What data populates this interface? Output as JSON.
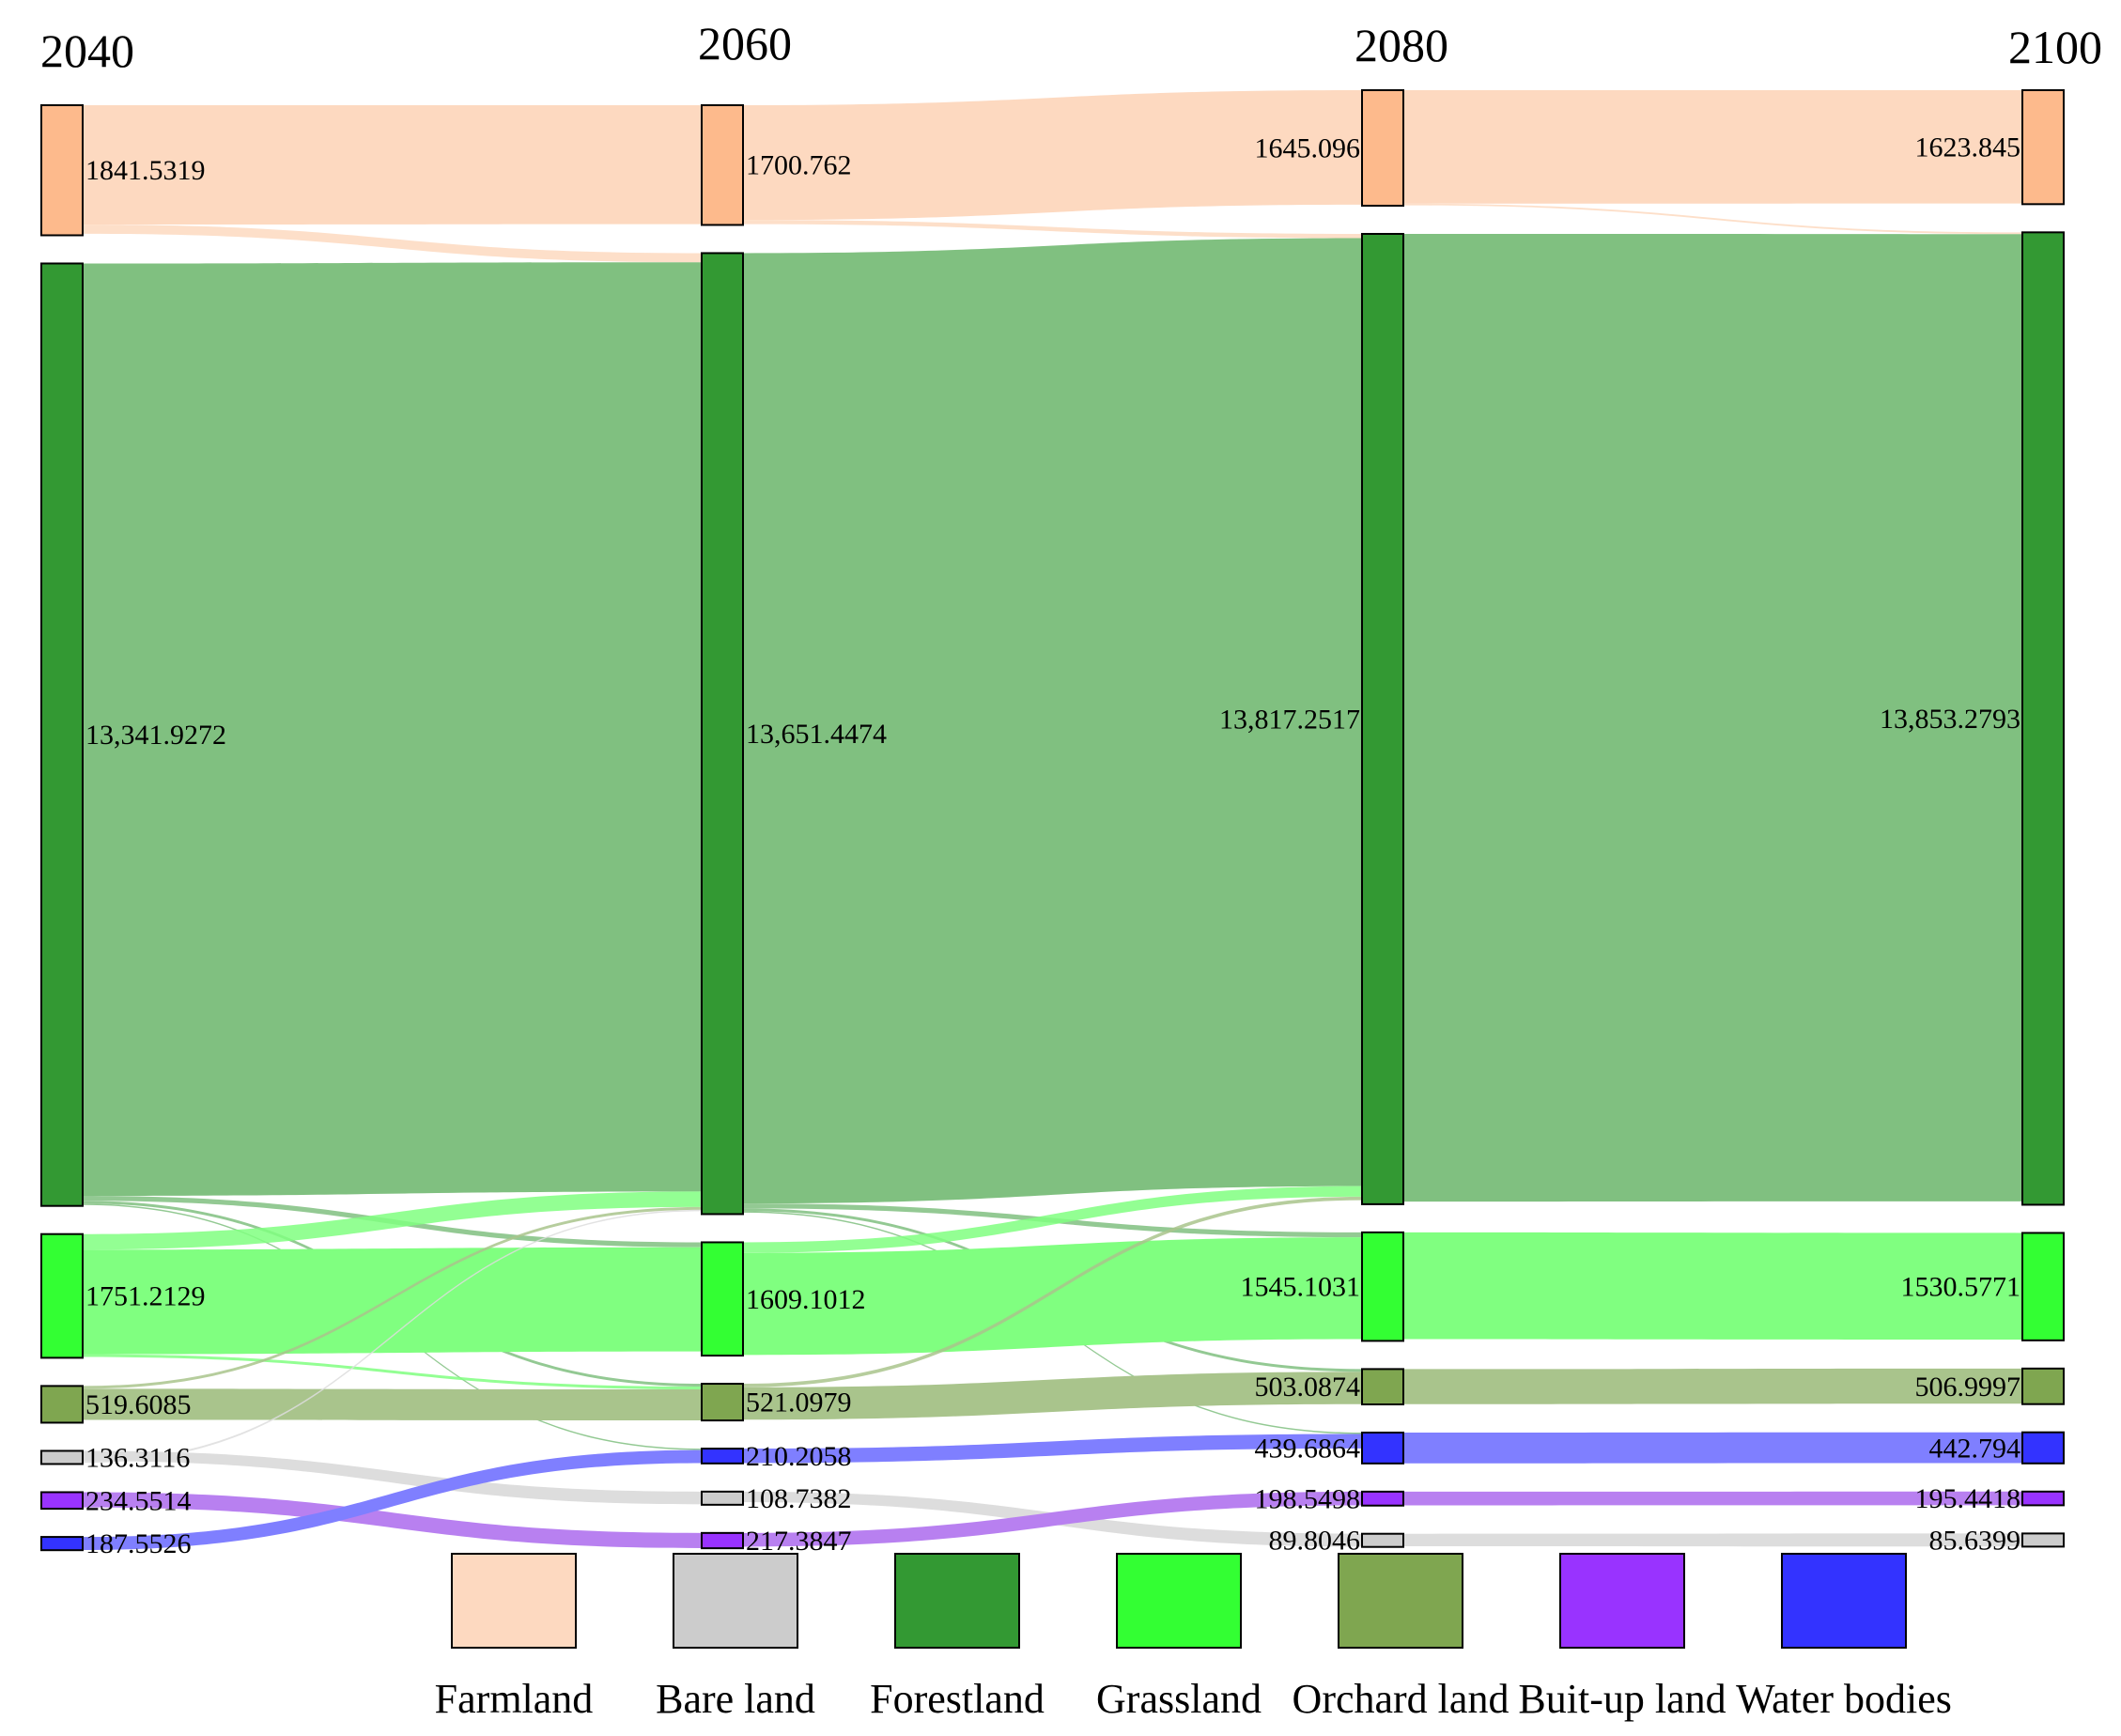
{
  "chart_data": {
    "type": "sankey",
    "title": "",
    "years": [
      "2040",
      "2060",
      "2080",
      "2100"
    ],
    "categories": [
      {
        "id": "farmland",
        "name": "Farmland",
        "color": "#FDBA8C",
        "flow_color": "#FDD9C0"
      },
      {
        "id": "forestland",
        "name": "Forestland",
        "color": "#339933",
        "flow_color": "#80C080"
      },
      {
        "id": "grassland",
        "name": "Grassland",
        "color": "#33FF33",
        "flow_color": "#80FF80"
      },
      {
        "id": "orchard",
        "name": "Orchard land",
        "color": "#7FA650",
        "flow_color": "#A9C48C"
      },
      {
        "id": "bare",
        "name": "Bare land",
        "color": "#CCCCCC",
        "flow_color": "#DDDDDD"
      },
      {
        "id": "builtup",
        "name": "Buit-up land",
        "color": "#9933FF",
        "flow_color": "#B880F0"
      },
      {
        "id": "water",
        "name": "Water bodies",
        "color": "#3333FF",
        "flow_color": "#7F7FFF"
      }
    ],
    "legend_order": [
      "farmland",
      "bare",
      "forestland",
      "grassland",
      "orchard",
      "builtup",
      "water"
    ],
    "node_values": {
      "2040": {
        "farmland": 1841.5319,
        "forestland": 13341.9272,
        "grassland": 1751.2129,
        "orchard": 519.6085,
        "bare": 136.3116,
        "builtup": 234.5514,
        "water": 187.5526
      },
      "2060": {
        "farmland": 1700.762,
        "forestland": 13651.4474,
        "grassland": 1609.1012,
        "orchard": 521.0979,
        "water": 210.2058,
        "bare": 108.7382,
        "builtup": 217.3847
      },
      "2080": {
        "farmland": 1645.096,
        "forestland": 13817.2517,
        "grassland": 1545.1031,
        "orchard": 503.0874,
        "water": 439.6864,
        "builtup": 198.5498,
        "bare": 89.8046
      },
      "2100": {
        "farmland": 1623.845,
        "forestland": 13853.2793,
        "grassland": 1530.5771,
        "orchard": 506.9997,
        "water": 442.794,
        "builtup": 195.4418,
        "bare": 85.6399
      }
    },
    "node_labels": {
      "2040": {
        "farmland": "1841.5319",
        "forestland": "13,341.9272",
        "grassland": "1751.2129",
        "orchard": "519.6085",
        "bare": "136.3116",
        "builtup": "234.5514",
        "water": "187.5526"
      },
      "2060": {
        "farmland": "1700.762",
        "forestland": "13,651.4474",
        "grassland": "1609.1012",
        "orchard": "521.0979",
        "water": "210.2058",
        "bare": "108.7382",
        "builtup": "217.3847"
      },
      "2080": {
        "farmland": "1645.096",
        "forestland": "13,817.2517",
        "grassland": "1545.1031",
        "orchard": "503.0874",
        "water": "439.6864",
        "builtup": "198.5498",
        "bare": "89.8046"
      },
      "2100": {
        "farmland": "1623.845",
        "forestland": "13,853.2793",
        "grassland": "1530.5771",
        "orchard": "506.9997",
        "water": "442.794",
        "builtup": "195.4418",
        "bare": "85.6399"
      }
    },
    "node_order": {
      "2040": [
        "farmland",
        "forestland",
        "grassland",
        "orchard",
        "bare",
        "builtup",
        "water"
      ],
      "2060": [
        "farmland",
        "forestland",
        "grassland",
        "orchard",
        "water",
        "bare",
        "builtup"
      ],
      "2080": [
        "farmland",
        "forestland",
        "grassland",
        "orchard",
        "water",
        "builtup",
        "bare"
      ],
      "2100": [
        "farmland",
        "forestland",
        "grassland",
        "orchard",
        "water",
        "builtup",
        "bare"
      ]
    },
    "flows": [
      {
        "period": 0,
        "source": "farmland",
        "target": "farmland",
        "value": 1690
      },
      {
        "period": 0,
        "source": "farmland",
        "target": "forestland",
        "value": 130
      },
      {
        "period": 0,
        "source": "forestland",
        "target": "forestland",
        "value": 13200
      },
      {
        "period": 0,
        "source": "forestland",
        "target": "grassland",
        "value": 70
      },
      {
        "period": 0,
        "source": "forestland",
        "target": "orchard",
        "value": 40
      },
      {
        "period": 0,
        "source": "forestland",
        "target": "water",
        "value": 12
      },
      {
        "period": 0,
        "source": "grassland",
        "target": "forestland",
        "value": 220
      },
      {
        "period": 0,
        "source": "grassland",
        "target": "grassland",
        "value": 1480
      },
      {
        "period": 0,
        "source": "grassland",
        "target": "orchard",
        "value": 40
      },
      {
        "period": 0,
        "source": "orchard",
        "target": "forestland",
        "value": 40
      },
      {
        "period": 0,
        "source": "orchard",
        "target": "orchard",
        "value": 440
      },
      {
        "period": 0,
        "source": "bare",
        "target": "bare",
        "value": 105
      },
      {
        "period": 0,
        "source": "bare",
        "target": "forestland",
        "value": 20
      },
      {
        "period": 0,
        "source": "builtup",
        "target": "builtup",
        "value": 215
      },
      {
        "period": 0,
        "source": "water",
        "target": "water",
        "value": 185
      },
      {
        "period": 1,
        "source": "farmland",
        "target": "farmland",
        "value": 1630
      },
      {
        "period": 1,
        "source": "farmland",
        "target": "forestland",
        "value": 60
      },
      {
        "period": 1,
        "source": "forestland",
        "target": "forestland",
        "value": 13500
      },
      {
        "period": 1,
        "source": "forestland",
        "target": "grassland",
        "value": 70
      },
      {
        "period": 1,
        "source": "forestland",
        "target": "orchard",
        "value": 40
      },
      {
        "period": 1,
        "source": "forestland",
        "target": "water",
        "value": 20
      },
      {
        "period": 1,
        "source": "grassland",
        "target": "forestland",
        "value": 150
      },
      {
        "period": 1,
        "source": "grassland",
        "target": "grassland",
        "value": 1450
      },
      {
        "period": 1,
        "source": "orchard",
        "target": "forestland",
        "value": 50
      },
      {
        "period": 1,
        "source": "orchard",
        "target": "orchard",
        "value": 460
      },
      {
        "period": 1,
        "source": "water",
        "target": "water",
        "value": 205
      },
      {
        "period": 1,
        "source": "bare",
        "target": "bare",
        "value": 88
      },
      {
        "period": 1,
        "source": "builtup",
        "target": "builtup",
        "value": 195
      },
      {
        "period": 2,
        "source": "farmland",
        "target": "farmland",
        "value": 1615
      },
      {
        "period": 2,
        "source": "farmland",
        "target": "forestland",
        "value": 25
      },
      {
        "period": 2,
        "source": "forestland",
        "target": "forestland",
        "value": 13780
      },
      {
        "period": 2,
        "source": "grassland",
        "target": "grassland",
        "value": 1520
      },
      {
        "period": 2,
        "source": "orchard",
        "target": "orchard",
        "value": 500
      },
      {
        "period": 2,
        "source": "water",
        "target": "water",
        "value": 438
      },
      {
        "period": 2,
        "source": "builtup",
        "target": "builtup",
        "value": 195
      },
      {
        "period": 2,
        "source": "bare",
        "target": "bare",
        "value": 85
      }
    ]
  }
}
